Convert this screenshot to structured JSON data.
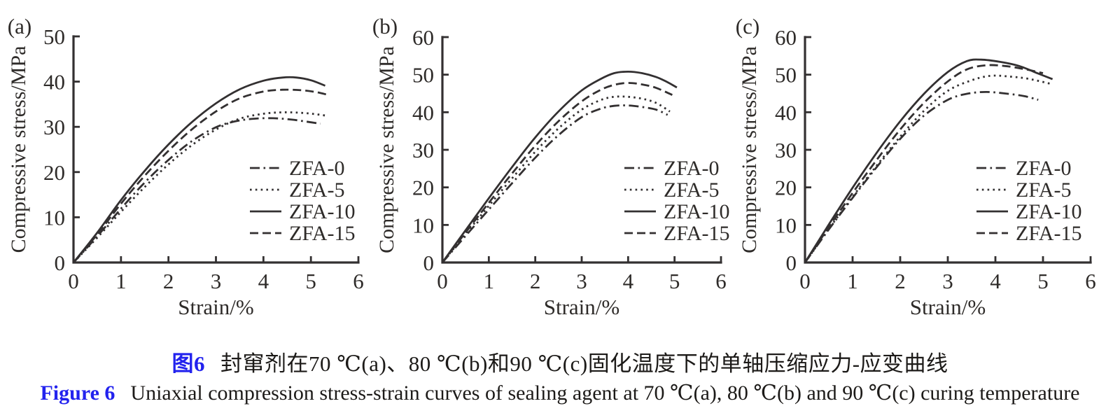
{
  "figure": {
    "captions": {
      "cn": {
        "label": "图6",
        "text": "封窜剂在70 ℃(a)、80 ℃(b)和90 ℃(c)固化温度下的单轴压缩应力-应变曲线"
      },
      "en": {
        "label": "Figure 6",
        "text": "Uniaxial compression stress-strain curves of sealing agent at 70 ℃(a), 80 ℃(b) and 90 ℃(c) curing temperature"
      }
    },
    "colors": {
      "accent": "#2222ee",
      "line": "#333031",
      "text": "#2e2b29"
    }
  },
  "chart_data": [
    {
      "type": "line",
      "panel_label": "(a)",
      "xlabel": "Strain/%",
      "ylabel": "Compressive stress/MPa",
      "xlim": [
        0,
        6
      ],
      "ylim": [
        0,
        50
      ],
      "xticks": [
        0,
        1,
        2,
        3,
        4,
        5,
        6
      ],
      "yticks": [
        0,
        10,
        20,
        30,
        40,
        50
      ],
      "grid": false,
      "legend_position": "right-center",
      "series": [
        {
          "name": "ZFA-0",
          "style": "dash-dot",
          "points": [
            [
              0,
              0
            ],
            [
              0.5,
              5.8
            ],
            [
              1,
              11.9
            ],
            [
              1.5,
              17.7
            ],
            [
              2,
              22.7
            ],
            [
              2.5,
              26.9
            ],
            [
              3,
              29.9
            ],
            [
              3.4,
              31.2
            ],
            [
              3.8,
              31.8
            ],
            [
              4.2,
              31.9
            ],
            [
              4.6,
              31.6
            ],
            [
              5,
              31
            ],
            [
              5.2,
              30.7
            ]
          ]
        },
        {
          "name": "ZFA-5",
          "style": "dotted",
          "points": [
            [
              0,
              0
            ],
            [
              0.5,
              5.5
            ],
            [
              1,
              11.2
            ],
            [
              1.5,
              16.7
            ],
            [
              2,
              21.7
            ],
            [
              2.5,
              26
            ],
            [
              3,
              29.4
            ],
            [
              3.5,
              31.8
            ],
            [
              4,
              32.9
            ],
            [
              4.4,
              33.2
            ],
            [
              4.8,
              33.1
            ],
            [
              5.1,
              32.8
            ],
            [
              5.3,
              32.5
            ]
          ]
        },
        {
          "name": "ZFA-10",
          "style": "solid",
          "points": [
            [
              0,
              0
            ],
            [
              0.5,
              6.6
            ],
            [
              1,
              13.8
            ],
            [
              1.5,
              20.3
            ],
            [
              2,
              26.1
            ],
            [
              2.5,
              31.1
            ],
            [
              3,
              35.2
            ],
            [
              3.5,
              38.3
            ],
            [
              4,
              40.2
            ],
            [
              4.4,
              40.9
            ],
            [
              4.7,
              40.9
            ],
            [
              5,
              40.3
            ],
            [
              5.3,
              39.1
            ]
          ]
        },
        {
          "name": "ZFA-15",
          "style": "dashed",
          "points": [
            [
              0,
              0
            ],
            [
              0.5,
              6.2
            ],
            [
              1,
              13
            ],
            [
              1.5,
              19.2
            ],
            [
              2,
              24.7
            ],
            [
              2.5,
              29.5
            ],
            [
              3,
              33.4
            ],
            [
              3.5,
              36.3
            ],
            [
              4,
              37.8
            ],
            [
              4.4,
              38.2
            ],
            [
              4.8,
              38.1
            ],
            [
              5.1,
              37.7
            ],
            [
              5.35,
              37.1
            ]
          ]
        }
      ]
    },
    {
      "type": "line",
      "panel_label": "(b)",
      "xlabel": "Strain/%",
      "ylabel": "Compressive stress/MPa",
      "xlim": [
        0,
        6
      ],
      "ylim": [
        0,
        60
      ],
      "xticks": [
        0,
        1,
        2,
        3,
        4,
        5,
        6
      ],
      "yticks": [
        0,
        10,
        20,
        30,
        40,
        50,
        60
      ],
      "grid": false,
      "legend_position": "right-center",
      "series": [
        {
          "name": "ZFA-0",
          "style": "dash-dot",
          "points": [
            [
              0,
              0
            ],
            [
              0.5,
              7.1
            ],
            [
              1,
              14.1
            ],
            [
              1.5,
              21.1
            ],
            [
              2,
              27.9
            ],
            [
              2.5,
              33.9
            ],
            [
              3,
              38.7
            ],
            [
              3.4,
              40.9
            ],
            [
              3.7,
              41.7
            ],
            [
              4,
              41.8
            ],
            [
              4.3,
              41.4
            ],
            [
              4.6,
              40.7
            ],
            [
              4.85,
              39.3
            ]
          ]
        },
        {
          "name": "ZFA-5",
          "style": "dotted",
          "points": [
            [
              0,
              0
            ],
            [
              0.5,
              7.6
            ],
            [
              1,
              15.1
            ],
            [
              1.5,
              22.4
            ],
            [
              2,
              29.5
            ],
            [
              2.5,
              35.7
            ],
            [
              3,
              40.7
            ],
            [
              3.4,
              43.2
            ],
            [
              3.7,
              44.1
            ],
            [
              4,
              44.1
            ],
            [
              4.3,
              43.6
            ],
            [
              4.6,
              42.5
            ],
            [
              4.9,
              40.2
            ]
          ]
        },
        {
          "name": "ZFA-10",
          "style": "solid",
          "points": [
            [
              0,
              0
            ],
            [
              0.5,
              8.6
            ],
            [
              1,
              17.1
            ],
            [
              1.5,
              25.4
            ],
            [
              2,
              33.3
            ],
            [
              2.5,
              40.2
            ],
            [
              3,
              45.8
            ],
            [
              3.4,
              48.8
            ],
            [
              3.7,
              50.4
            ],
            [
              4,
              50.8
            ],
            [
              4.3,
              50.4
            ],
            [
              4.6,
              49.4
            ],
            [
              4.8,
              48.3
            ],
            [
              5.05,
              46.6
            ]
          ]
        },
        {
          "name": "ZFA-15",
          "style": "dashed",
          "points": [
            [
              0,
              0
            ],
            [
              0.5,
              8
            ],
            [
              1,
              15.9
            ],
            [
              1.5,
              23.7
            ],
            [
              2,
              31.1
            ],
            [
              2.5,
              37.6
            ],
            [
              3,
              42.9
            ],
            [
              3.4,
              45.9
            ],
            [
              3.7,
              47.3
            ],
            [
              4,
              47.8
            ],
            [
              4.3,
              47.4
            ],
            [
              4.6,
              46.5
            ],
            [
              4.95,
              44.6
            ]
          ]
        }
      ]
    },
    {
      "type": "line",
      "panel_label": "(c)",
      "xlabel": "Strain/%",
      "ylabel": "Compressive stress/MPa",
      "xlim": [
        0,
        6
      ],
      "ylim": [
        0,
        60
      ],
      "xticks": [
        0,
        1,
        2,
        3,
        4,
        5,
        6
      ],
      "yticks": [
        0,
        10,
        20,
        30,
        40,
        50,
        60
      ],
      "grid": false,
      "legend_position": "right-center",
      "series": [
        {
          "name": "ZFA-0",
          "style": "dash-dot",
          "points": [
            [
              0,
              0
            ],
            [
              0.5,
              8.8
            ],
            [
              1,
              17.2
            ],
            [
              1.5,
              25.3
            ],
            [
              2,
              32.9
            ],
            [
              2.5,
              39.1
            ],
            [
              3,
              43.3
            ],
            [
              3.4,
              44.9
            ],
            [
              3.8,
              45.4
            ],
            [
              4.2,
              45
            ],
            [
              4.6,
              44.3
            ],
            [
              4.9,
              43.3
            ]
          ]
        },
        {
          "name": "ZFA-5",
          "style": "dotted",
          "points": [
            [
              0,
              0
            ],
            [
              0.5,
              8.9
            ],
            [
              1,
              17.5
            ],
            [
              1.5,
              25.7
            ],
            [
              2,
              33.5
            ],
            [
              2.5,
              40.4
            ],
            [
              3,
              45.7
            ],
            [
              3.5,
              48.5
            ],
            [
              3.9,
              49.7
            ],
            [
              4.3,
              49.5
            ],
            [
              4.7,
              48.9
            ],
            [
              5.15,
              47.6
            ]
          ]
        },
        {
          "name": "ZFA-10",
          "style": "solid",
          "points": [
            [
              0,
              0
            ],
            [
              0.5,
              10.1
            ],
            [
              1,
              19.9
            ],
            [
              1.5,
              29.1
            ],
            [
              2,
              37.6
            ],
            [
              2.5,
              44.9
            ],
            [
              3,
              50.7
            ],
            [
              3.4,
              53.6
            ],
            [
              3.7,
              54
            ],
            [
              4.1,
              53.4
            ],
            [
              4.5,
              52.3
            ],
            [
              4.9,
              50.3
            ],
            [
              5.2,
              48.8
            ]
          ]
        },
        {
          "name": "ZFA-15",
          "style": "dashed",
          "points": [
            [
              0,
              0
            ],
            [
              0.5,
              9.4
            ],
            [
              1,
              18.5
            ],
            [
              1.5,
              27.2
            ],
            [
              2,
              35.4
            ],
            [
              2.5,
              42.5
            ],
            [
              3,
              48.2
            ],
            [
              3.4,
              51.4
            ],
            [
              3.8,
              52.5
            ],
            [
              4.2,
              52.3
            ],
            [
              4.6,
              51.5
            ],
            [
              5,
              50.4
            ]
          ]
        }
      ]
    }
  ]
}
